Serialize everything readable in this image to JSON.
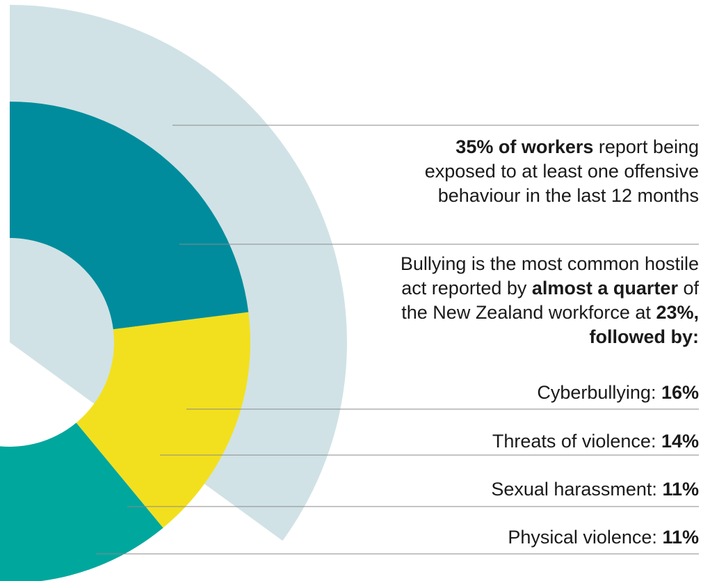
{
  "chart_data": {
    "type": "radial-bar",
    "series": [
      {
        "name": "At least one offensive behaviour",
        "value": 35,
        "color": "#d0e2e6"
      },
      {
        "name": "Bullying",
        "value": 23,
        "color": "#008c9c"
      },
      {
        "name": "Cyberbullying",
        "value": 16,
        "color": "#f2e01e"
      },
      {
        "name": "Threats of violence",
        "value": 14,
        "color": "#00a79d"
      },
      {
        "name": "Sexual harassment",
        "value": 11,
        "color": "#bfd5d7"
      },
      {
        "name": "Physical violence",
        "value": 11,
        "color": "#52bd87"
      }
    ],
    "line_color": "#8a8a8a"
  },
  "annotations": {
    "main": {
      "bold": "35% of workers",
      "rest": " report being exposed to at least one offensive behaviour in the last 12 months"
    },
    "bullying": {
      "t1": "Bullying is the most common hostile act reported by ",
      "b1": "almost a quarter",
      "t2": " of the New Zealand workforce at ",
      "b2": "23%, followed by:"
    },
    "categories": [
      {
        "label": "Cyberbullying: ",
        "value": "16%"
      },
      {
        "label": "Threats of violence: ",
        "value": "14%"
      },
      {
        "label": "Sexual harassment: ",
        "value": "11%"
      },
      {
        "label": "Physical violence: ",
        "value": "11%"
      }
    ]
  }
}
